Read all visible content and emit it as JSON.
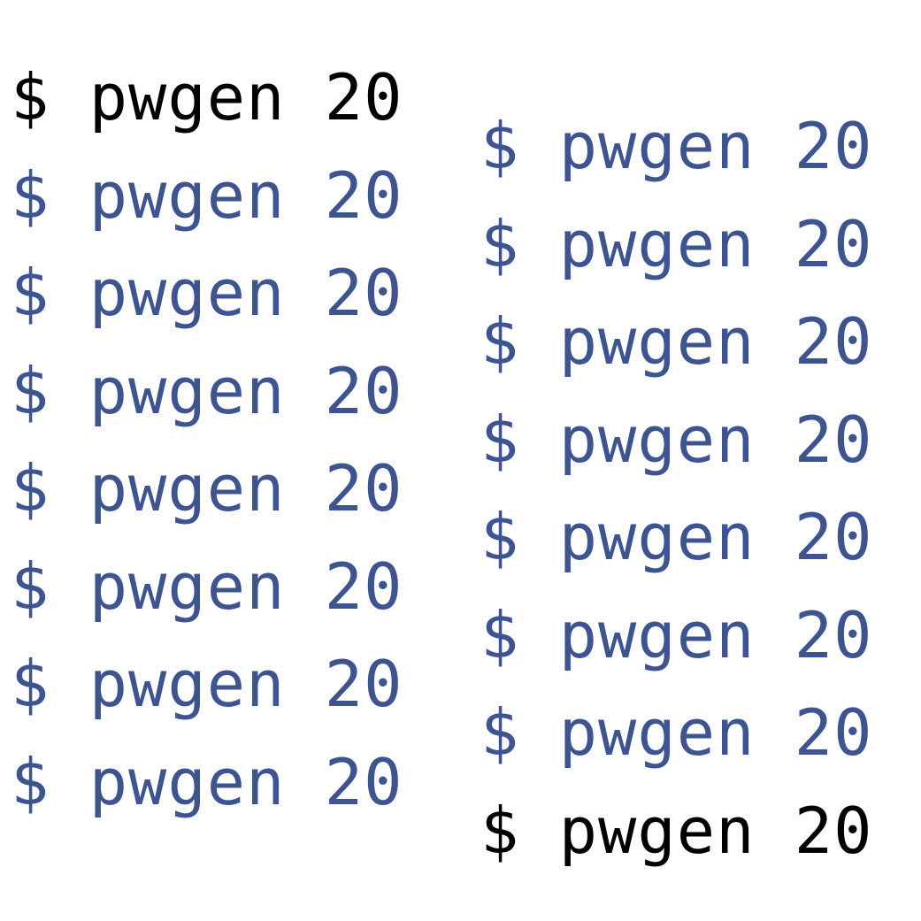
{
  "colors": {
    "emphasis": "#000000",
    "muted": "#3d5491",
    "background": "#ffffff"
  },
  "columns": [
    {
      "lines": [
        {
          "text": "$ pwgen 20",
          "style": "emph"
        },
        {
          "text": "$ pwgen 20",
          "style": "muted"
        },
        {
          "text": "$ pwgen 20",
          "style": "muted"
        },
        {
          "text": "$ pwgen 20",
          "style": "muted"
        },
        {
          "text": "$ pwgen 20",
          "style": "muted"
        },
        {
          "text": "$ pwgen 20",
          "style": "muted"
        },
        {
          "text": "$ pwgen 20",
          "style": "muted"
        },
        {
          "text": "$ pwgen 20",
          "style": "muted"
        }
      ]
    },
    {
      "lines": [
        {
          "text": "$ pwgen 20",
          "style": "muted"
        },
        {
          "text": "$ pwgen 20",
          "style": "muted"
        },
        {
          "text": "$ pwgen 20",
          "style": "muted"
        },
        {
          "text": "$ pwgen 20",
          "style": "muted"
        },
        {
          "text": "$ pwgen 20",
          "style": "muted"
        },
        {
          "text": "$ pwgen 20",
          "style": "muted"
        },
        {
          "text": "$ pwgen 20",
          "style": "muted"
        },
        {
          "text": "$ pwgen 20",
          "style": "emph"
        }
      ]
    }
  ]
}
